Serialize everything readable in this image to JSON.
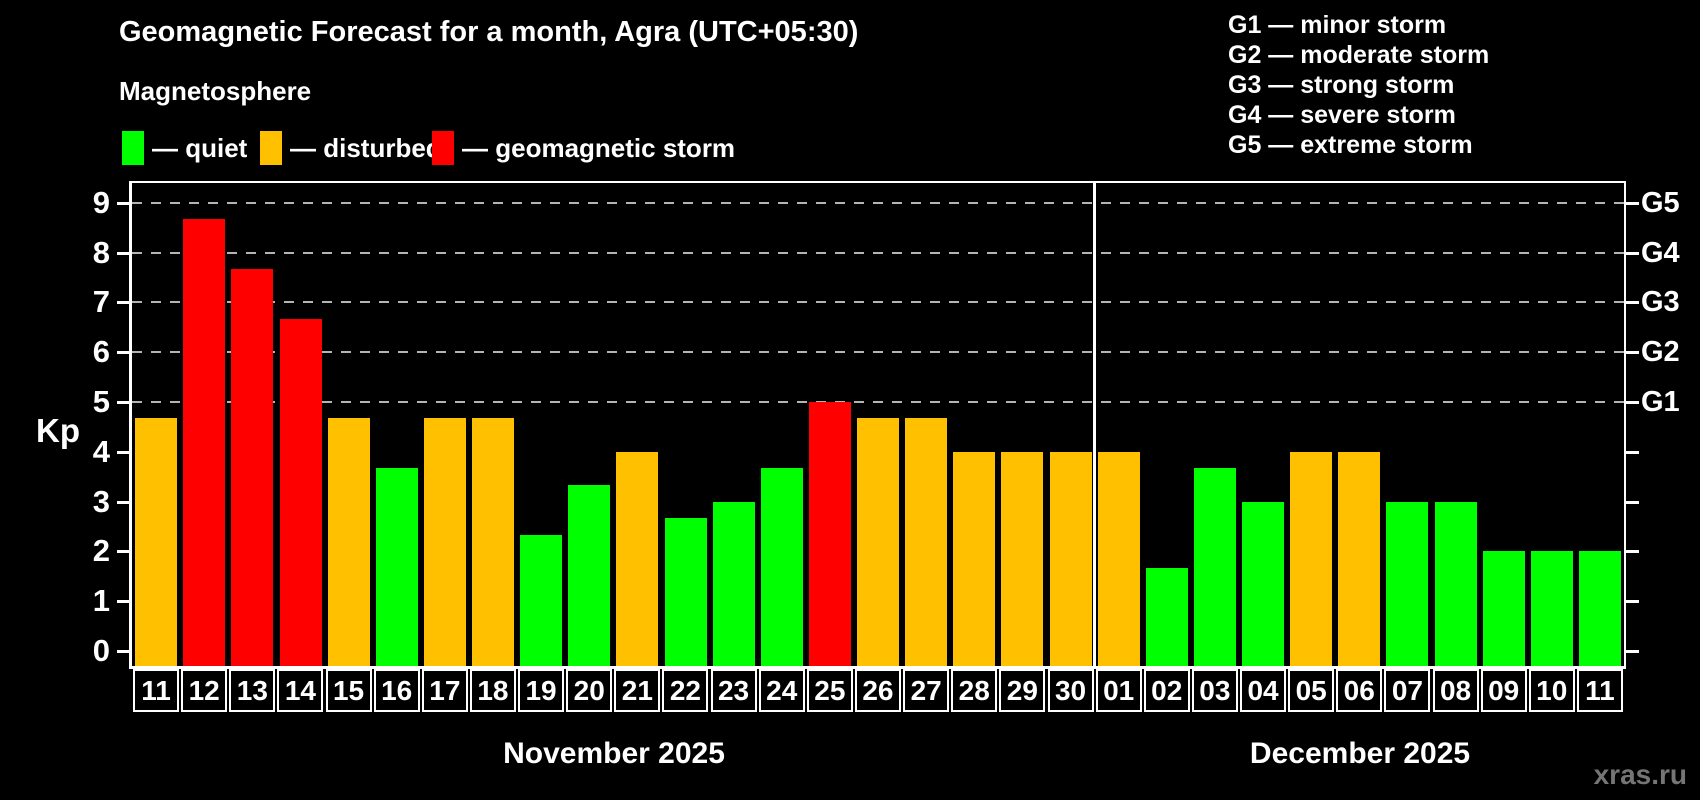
{
  "title": "Geomagnetic Forecast for a month, Agra (UTC+05:30)",
  "subtitle": "Magnetosphere",
  "legend": [
    {
      "label": "— quiet",
      "status": "quiet",
      "color": "#00ff00"
    },
    {
      "label": "— disturbed",
      "status": "disturbed",
      "color": "#ffc000"
    },
    {
      "label": "— geomagnetic storm",
      "status": "storm",
      "color": "#ff0000"
    }
  ],
  "g_legend": [
    "G1 — minor storm",
    "G2 — moderate storm",
    "G3 — strong storm",
    "G4 — severe storm",
    "G5 — extreme storm"
  ],
  "watermark": "xras.ru",
  "chart_data": {
    "type": "bar",
    "title": "Geomagnetic Forecast for a month, Agra (UTC+05:30)",
    "ylabel": "Kp",
    "ylim": [
      0,
      9
    ],
    "yticks": [
      0,
      1,
      2,
      3,
      4,
      5,
      6,
      7,
      8,
      9
    ],
    "gridlines": [
      5,
      6,
      7,
      8,
      9
    ],
    "grid_style": "dashed",
    "legend_position": "top-left",
    "right_axis_labels": [
      {
        "value": 5,
        "label": "G1"
      },
      {
        "value": 6,
        "label": "G2"
      },
      {
        "value": 7,
        "label": "G3"
      },
      {
        "value": 8,
        "label": "G4"
      },
      {
        "value": 9,
        "label": "G5"
      }
    ],
    "status_colors": {
      "quiet": "#00ff00",
      "disturbed": "#ffc000",
      "storm": "#ff0000"
    },
    "months": [
      {
        "label": "November 2025",
        "bars": [
          {
            "day": "11",
            "kp": 4.67,
            "status": "disturbed"
          },
          {
            "day": "12",
            "kp": 8.67,
            "status": "storm"
          },
          {
            "day": "13",
            "kp": 7.67,
            "status": "storm"
          },
          {
            "day": "14",
            "kp": 6.67,
            "status": "storm"
          },
          {
            "day": "15",
            "kp": 4.67,
            "status": "disturbed"
          },
          {
            "day": "16",
            "kp": 3.67,
            "status": "quiet"
          },
          {
            "day": "17",
            "kp": 4.67,
            "status": "disturbed"
          },
          {
            "day": "18",
            "kp": 4.67,
            "status": "disturbed"
          },
          {
            "day": "19",
            "kp": 2.33,
            "status": "quiet"
          },
          {
            "day": "20",
            "kp": 3.33,
            "status": "quiet"
          },
          {
            "day": "21",
            "kp": 4.0,
            "status": "disturbed"
          },
          {
            "day": "22",
            "kp": 2.67,
            "status": "quiet"
          },
          {
            "day": "23",
            "kp": 3.0,
            "status": "quiet"
          },
          {
            "day": "24",
            "kp": 3.67,
            "status": "quiet"
          },
          {
            "day": "25",
            "kp": 5.0,
            "status": "storm"
          },
          {
            "day": "26",
            "kp": 4.67,
            "status": "disturbed"
          },
          {
            "day": "27",
            "kp": 4.67,
            "status": "disturbed"
          },
          {
            "day": "28",
            "kp": 4.0,
            "status": "disturbed"
          },
          {
            "day": "29",
            "kp": 4.0,
            "status": "disturbed"
          },
          {
            "day": "30",
            "kp": 4.0,
            "status": "disturbed"
          }
        ]
      },
      {
        "label": "December 2025",
        "bars": [
          {
            "day": "01",
            "kp": 4.0,
            "status": "disturbed"
          },
          {
            "day": "02",
            "kp": 1.67,
            "status": "quiet"
          },
          {
            "day": "03",
            "kp": 3.67,
            "status": "quiet"
          },
          {
            "day": "04",
            "kp": 3.0,
            "status": "quiet"
          },
          {
            "day": "05",
            "kp": 4.0,
            "status": "disturbed"
          },
          {
            "day": "06",
            "kp": 4.0,
            "status": "disturbed"
          },
          {
            "day": "07",
            "kp": 3.0,
            "status": "quiet"
          },
          {
            "day": "08",
            "kp": 3.0,
            "status": "quiet"
          },
          {
            "day": "09",
            "kp": 2.0,
            "status": "quiet"
          },
          {
            "day": "10",
            "kp": 2.0,
            "status": "quiet"
          },
          {
            "day": "11",
            "kp": 2.0,
            "status": "quiet"
          }
        ]
      }
    ]
  }
}
